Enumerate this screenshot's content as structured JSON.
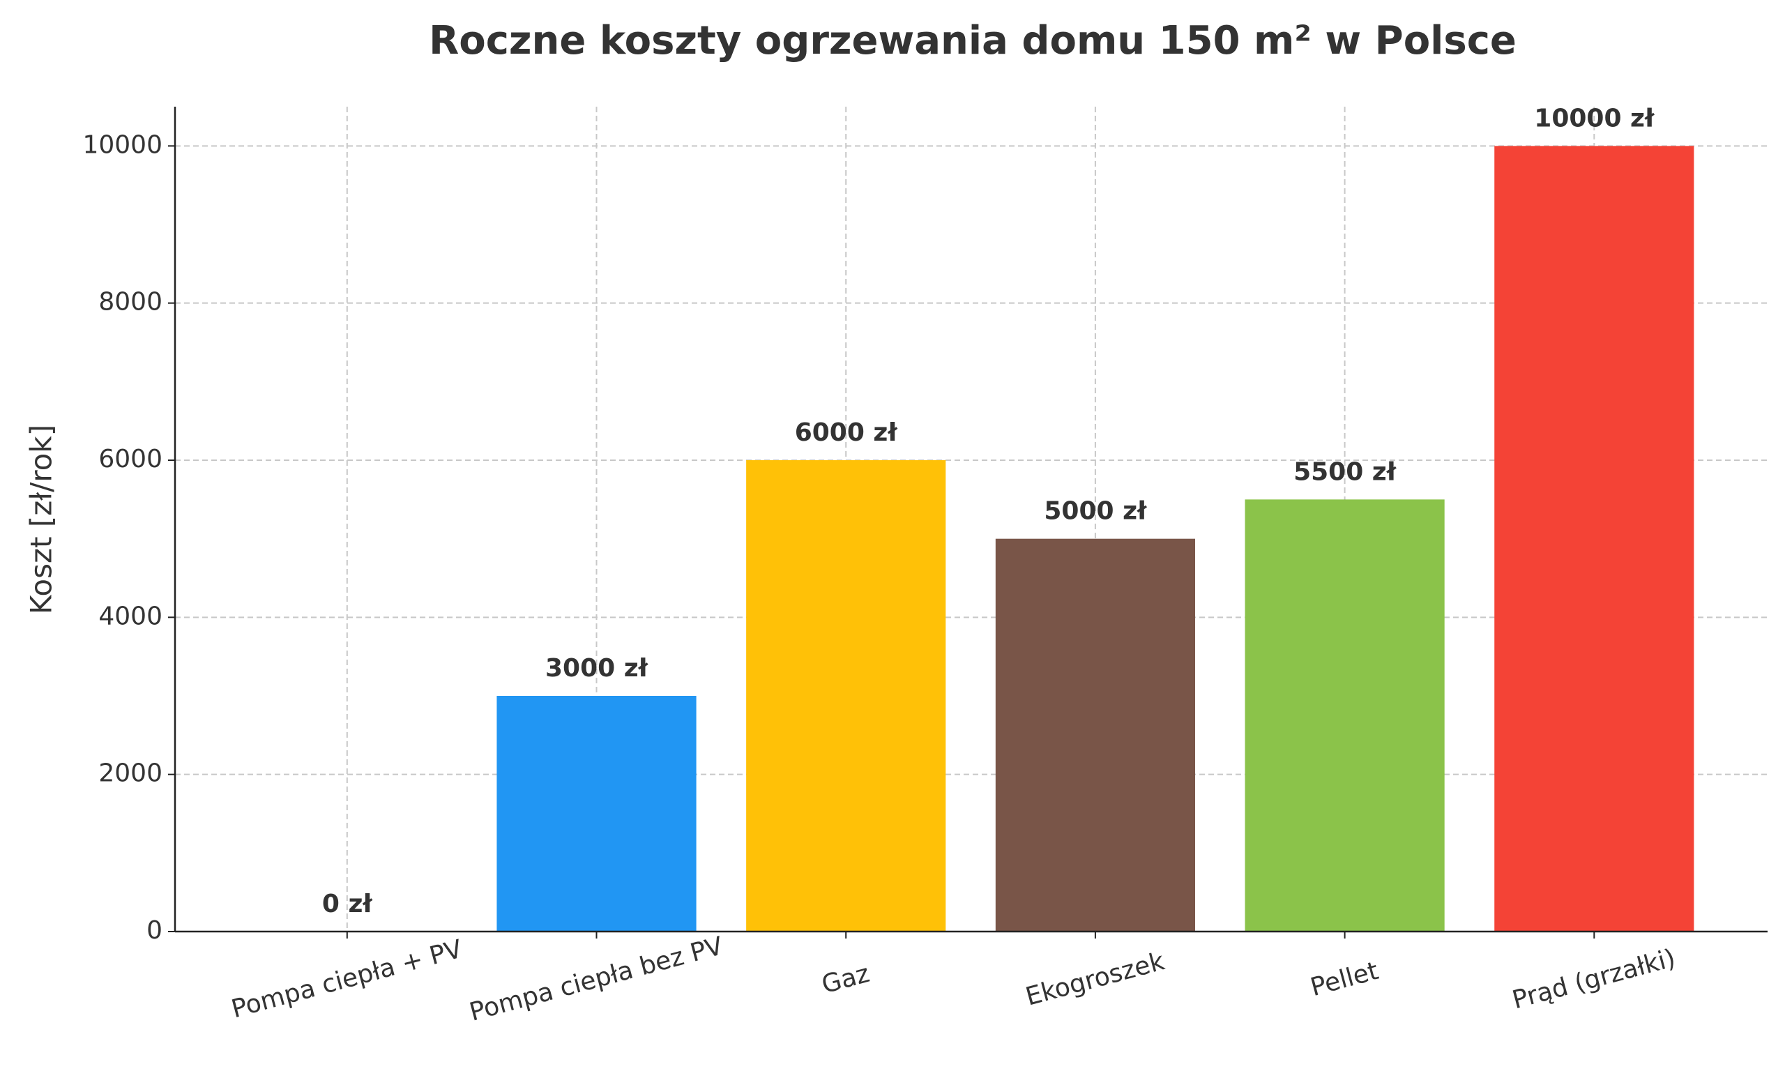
{
  "chart_data": {
    "type": "bar",
    "title": "Roczne koszty ogrzewania domu 150 m² w Polsce",
    "y_label": "Koszt [zł/rok]",
    "categories": [
      "Pompa ciepła + PV",
      "Pompa ciepła bez PV",
      "Gaz",
      "Ekogroszek",
      "Pellet",
      "Prąd (grzałki)"
    ],
    "values": [
      0,
      3000,
      6000,
      5000,
      5500,
      10000
    ],
    "value_labels": [
      "0 zł",
      "3000 zł",
      "6000 zł",
      "5000 zł",
      "5500 zł",
      "10000 zł"
    ],
    "colors": [
      "#4caf50",
      "#2196f3",
      "#ffc107",
      "#795548",
      "#8bc34a",
      "#f44336"
    ],
    "ylim": [
      0,
      10500
    ],
    "yticks": [
      0,
      2000,
      4000,
      6000,
      8000,
      10000
    ],
    "grid": true
  }
}
